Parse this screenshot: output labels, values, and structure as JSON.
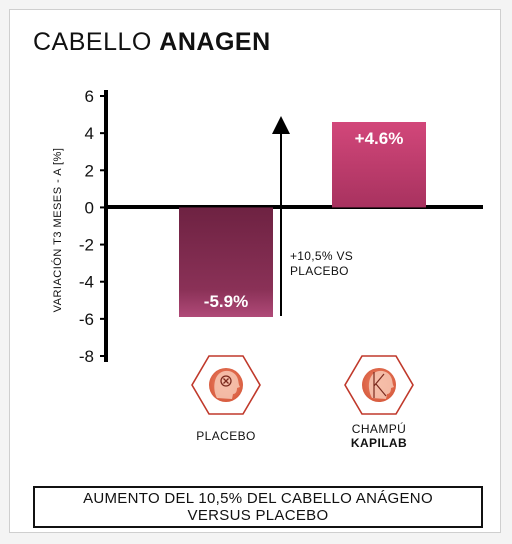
{
  "title": {
    "light": "CABELLO",
    "bold": "ANAGEN"
  },
  "chart_data": {
    "type": "bar",
    "categories": [
      "PLACEBO",
      "CHAMPÚ KAPILAB"
    ],
    "values": [
      -5.9,
      4.6
    ],
    "data_labels": [
      "-5.9%",
      "+4.6%"
    ],
    "ylabel": "VARIACIÓN T3 MESES - A [%]",
    "ylim": [
      -8,
      6
    ],
    "yticks": [
      6,
      4,
      2,
      0,
      -2,
      -4,
      -6,
      -8
    ],
    "grid": false,
    "annotation": {
      "line1": "+10,5% VS",
      "line2": "PLACEBO"
    }
  },
  "categories_display": [
    {
      "line1": "PLACEBO",
      "line2": "",
      "icon": "placebo-head-icon"
    },
    {
      "line1": "CHAMPÚ",
      "line2": "KAPILAB",
      "icon": "kapilab-head-icon"
    }
  ],
  "footer": {
    "line1": "AUMENTO DEL 10,5% DEL CABELLO ANÁGENO",
    "line2": "VERSUS PLACEBO"
  },
  "colors": {
    "placebo_bar": "#7e2a4d",
    "kapilab_bar": "#c13f6e",
    "icon_outline": "#c0392b",
    "axis": "#000000"
  }
}
